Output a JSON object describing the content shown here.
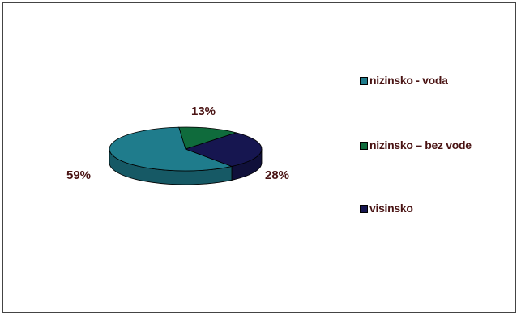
{
  "chart_data": {
    "type": "pie",
    "style": "3d",
    "categories": [
      "nizinsko - voda",
      "nizinsko – bez vode",
      "visinsko"
    ],
    "values": [
      59,
      13,
      28
    ],
    "data_labels": [
      "59%",
      "13%",
      "28%"
    ],
    "colors": [
      "#1f7c8c",
      "#0f6b3c",
      "#161650"
    ],
    "title": "",
    "legend_position": "right",
    "legend": [
      {
        "label": "nizinsko - voda",
        "color": "#1f7c8c"
      },
      {
        "label": "nizinsko – bez vode",
        "color": "#0f6b3c"
      },
      {
        "label": "visinsko",
        "color": "#161650"
      }
    ]
  }
}
